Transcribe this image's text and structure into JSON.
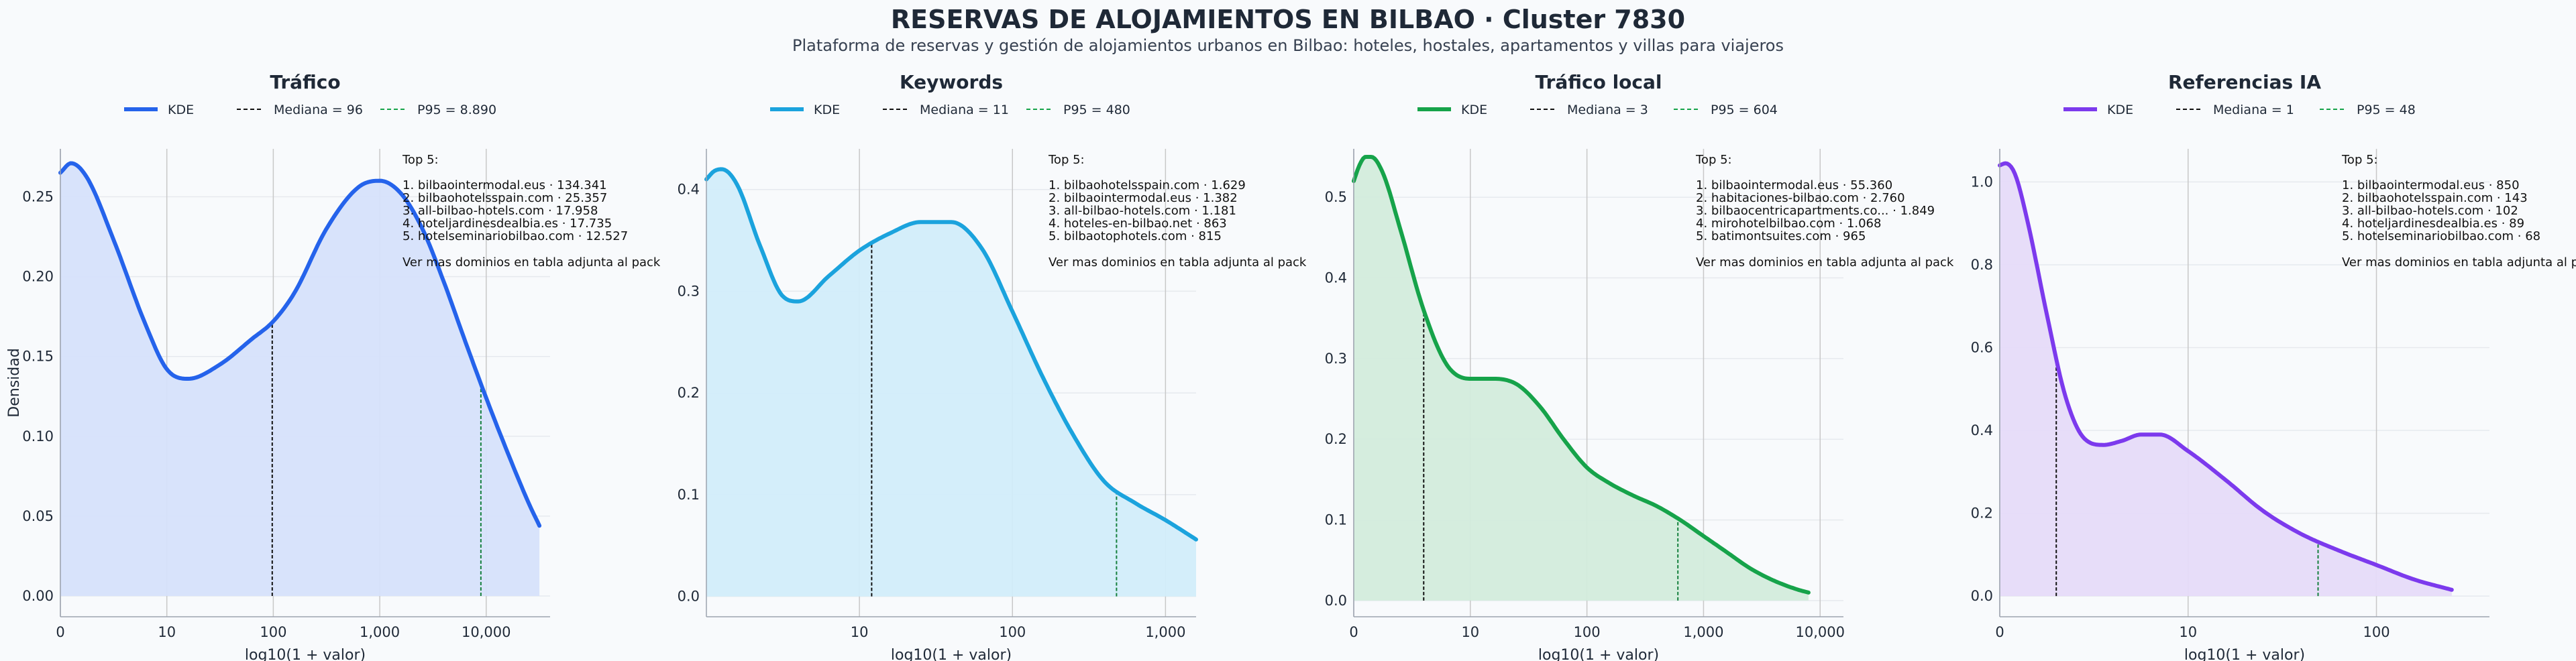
{
  "header": {
    "title": "RESERVAS DE ALOJAMIENTOS EN BILBAO · Cluster 7830",
    "subtitle": "Plataforma de reservas y gestión de alojamientos urbanos en Bilbao: hoteles, hostales, apartamentos y villas para viajeros"
  },
  "chart_data": [
    {
      "type": "area",
      "title": "Tráfico",
      "color": "#2563eb",
      "fill": "#d6e2fb",
      "xlabel": "log10(1 + valor)",
      "ylabel": "Densidad",
      "xlim": [
        0,
        4.6
      ],
      "ylim": [
        -0.013,
        0.28
      ],
      "xticks": [
        0,
        1,
        2,
        3,
        4
      ],
      "xtick_labels": [
        "0",
        "10",
        "100",
        "1,000",
        "10,000"
      ],
      "yticks": [
        0,
        0.05,
        0.1,
        0.15,
        0.2,
        0.25
      ],
      "ytick_labels": [
        "0.00",
        "0.05",
        "0.10",
        "0.15",
        "0.20",
        "0.25"
      ],
      "legend": [
        "KDE",
        "Mediana = 96",
        "P95 = 8.890"
      ],
      "median": 1.99,
      "p95": 3.95,
      "series": [
        {
          "x": [
            0,
            0.1,
            0.25,
            0.5,
            0.8,
            1.0,
            1.2,
            1.5,
            1.8,
            2.0,
            2.2,
            2.5,
            2.8,
            3.0,
            3.2,
            3.4,
            3.6,
            3.8,
            4.0,
            4.2,
            4.4,
            4.5
          ],
          "y": [
            0.265,
            0.271,
            0.262,
            0.223,
            0.17,
            0.142,
            0.136,
            0.145,
            0.161,
            0.172,
            0.19,
            0.23,
            0.256,
            0.26,
            0.252,
            0.23,
            0.197,
            0.16,
            0.124,
            0.09,
            0.058,
            0.044
          ]
        }
      ],
      "top5_title": "Top 5:",
      "top5": [
        "1. bilbaointermodal.eus · 134.341",
        "2. bilbaohotelsspain.com · 25.357",
        "3. all-bilbao-hotels.com · 17.958",
        "4. hoteljardinesdealbia.es · 17.735",
        "5. hotelseminariobilbao.com · 12.527"
      ],
      "note": "Ver mas dominios en tabla adjunta al pack"
    },
    {
      "type": "area",
      "title": "Keywords",
      "color": "#1ba3dd",
      "fill": "#d2edfa",
      "xlabel": "log10(1 + valor)",
      "ylabel": "",
      "xlim": [
        0,
        3.2
      ],
      "ylim": [
        -0.02,
        0.44
      ],
      "xticks": [
        1,
        2,
        3
      ],
      "xtick_labels": [
        "10",
        "100",
        "1,000"
      ],
      "yticks": [
        0,
        0.1,
        0.2,
        0.3,
        0.4
      ],
      "ytick_labels": [
        "0.0",
        "0.1",
        "0.2",
        "0.3",
        "0.4"
      ],
      "legend": [
        "KDE",
        "Mediana = 11",
        "P95 = 480"
      ],
      "median": 1.08,
      "p95": 2.68,
      "series": [
        {
          "x": [
            0,
            0.05,
            0.1,
            0.2,
            0.35,
            0.5,
            0.6,
            0.8,
            1.0,
            1.2,
            1.4,
            1.6,
            1.8,
            2.0,
            2.2,
            2.4,
            2.6,
            2.8,
            3.0,
            3.2
          ],
          "y": [
            0.41,
            0.418,
            0.42,
            0.405,
            0.345,
            0.295,
            0.29,
            0.315,
            0.34,
            0.357,
            0.368,
            0.368,
            0.342,
            0.28,
            0.215,
            0.158,
            0.113,
            0.092,
            0.075,
            0.056
          ]
        }
      ],
      "top5_title": "Top 5:",
      "top5": [
        "1. bilbaohotelsspain.com · 1.629",
        "2. bilbaointermodal.eus · 1.382",
        "3. all-bilbao-hotels.com · 1.181",
        "4. hoteles-en-bilbao.net · 863",
        "5. bilbaotophotels.com · 815"
      ],
      "note": "Ver mas dominios en tabla adjunta al pack"
    },
    {
      "type": "area",
      "title": "Tráfico local",
      "color": "#16a34a",
      "fill": "#d3ecdc",
      "xlabel": "log10(1 + valor)",
      "ylabel": "",
      "xlim": [
        0,
        4.2
      ],
      "ylim": [
        -0.02,
        0.56
      ],
      "xticks": [
        0,
        1,
        2,
        3,
        4
      ],
      "xtick_labels": [
        "0",
        "10",
        "100",
        "1,000",
        "10,000"
      ],
      "yticks": [
        0,
        0.1,
        0.2,
        0.3,
        0.4,
        0.5
      ],
      "ytick_labels": [
        "0.0",
        "0.1",
        "0.2",
        "0.3",
        "0.4",
        "0.5"
      ],
      "legend": [
        "KDE",
        "Mediana = 3",
        "P95 = 604"
      ],
      "median": 0.6,
      "p95": 2.78,
      "series": [
        {
          "x": [
            0,
            0.05,
            0.1,
            0.15,
            0.25,
            0.4,
            0.6,
            0.8,
            1.0,
            1.2,
            1.4,
            1.6,
            1.8,
            2.0,
            2.2,
            2.4,
            2.6,
            2.8,
            3.0,
            3.2,
            3.4,
            3.6,
            3.8,
            3.9
          ],
          "y": [
            0.52,
            0.54,
            0.55,
            0.55,
            0.53,
            0.46,
            0.36,
            0.292,
            0.275,
            0.275,
            0.268,
            0.24,
            0.2,
            0.165,
            0.145,
            0.13,
            0.117,
            0.1,
            0.08,
            0.06,
            0.04,
            0.025,
            0.014,
            0.01
          ]
        }
      ],
      "top5_title": "Top 5:",
      "top5": [
        "1. bilbaointermodal.eus · 55.360",
        "2. habitaciones-bilbao.com · 2.760",
        "3. bilbaocentricapartments.co... · 1.849",
        "4. mirohotelbilbao.com · 1.068",
        "5. batimontsuites.com · 965"
      ],
      "note": "Ver mas dominios en tabla adjunta al pack"
    },
    {
      "type": "area",
      "title": "Referencias IA",
      "color": "#7c3aed",
      "fill": "#e6dbf9",
      "xlabel": "log10(1 + valor)",
      "ylabel": "",
      "xlim": [
        0,
        2.6
      ],
      "ylim": [
        -0.05,
        1.08
      ],
      "xticks": [
        0,
        1,
        2
      ],
      "xtick_labels": [
        "0",
        "10",
        "100"
      ],
      "yticks": [
        0,
        0.2,
        0.4,
        0.6,
        0.8,
        1.0
      ],
      "ytick_labels": [
        "0.0",
        "0.2",
        "0.4",
        "0.6",
        "0.8",
        "1.0"
      ],
      "legend": [
        "KDE",
        "Mediana = 1",
        "P95 = 48"
      ],
      "median": 0.3,
      "p95": 1.69,
      "series": [
        {
          "x": [
            0,
            0.03,
            0.08,
            0.15,
            0.25,
            0.35,
            0.45,
            0.55,
            0.65,
            0.75,
            0.85,
            1.0,
            1.2,
            1.4,
            1.6,
            1.8,
            2.0,
            2.2,
            2.4
          ],
          "y": [
            1.04,
            1.045,
            1.02,
            0.9,
            0.68,
            0.48,
            0.38,
            0.365,
            0.375,
            0.39,
            0.39,
            0.35,
            0.28,
            0.205,
            0.15,
            0.11,
            0.075,
            0.04,
            0.015
          ]
        }
      ],
      "top5_title": "Top 5:",
      "top5": [
        "1. bilbaointermodal.eus · 850",
        "2. bilbaohotelsspain.com · 143",
        "3. all-bilbao-hotels.com · 102",
        "4. hoteljardinesdealbia.es · 89",
        "5. hotelseminariobilbao.com · 68"
      ],
      "note": "Ver mas dominios en tabla adjunta al pack"
    }
  ]
}
